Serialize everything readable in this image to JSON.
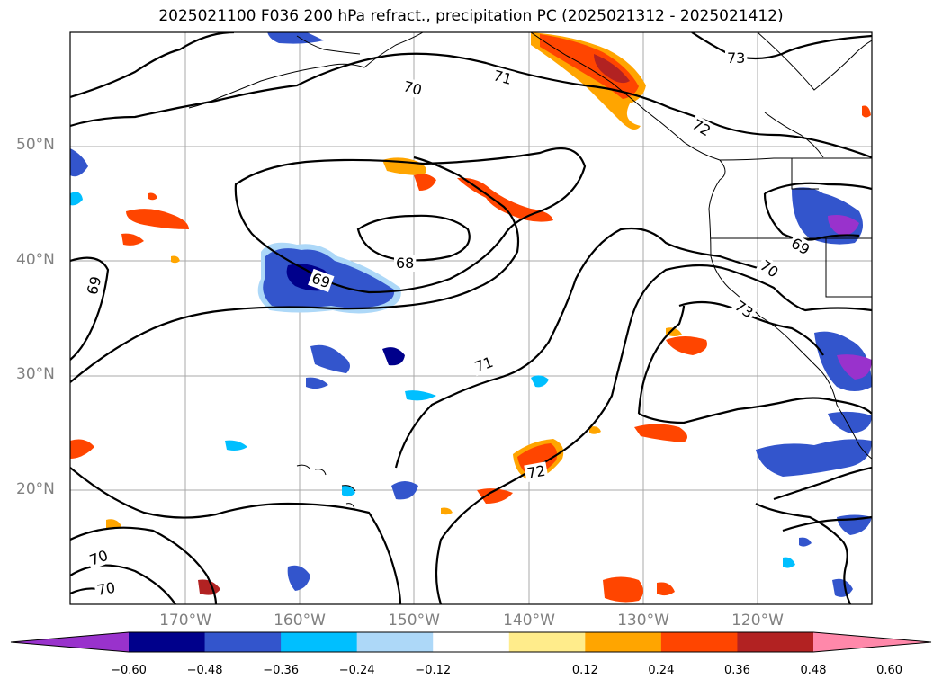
{
  "title": "2025021100 F036 200 hPa refract., precipitation PC (2025021312 - 2025021412)",
  "lat_labels": [
    "50°N",
    "40°N",
    "30°N",
    "20°N"
  ],
  "lon_labels": [
    "170°W",
    "160°W",
    "150°W",
    "140°W",
    "130°W",
    "120°W"
  ],
  "contour_labels": [
    "73",
    "71",
    "70",
    "72",
    "68",
    "69",
    "69",
    "70",
    "73",
    "71",
    "72",
    "69",
    "70",
    "70"
  ],
  "colorbar": {
    "ticks": [
      "−0.60",
      "−0.48",
      "−0.36",
      "−0.24",
      "−0.12",
      "0.12",
      "0.24",
      "0.36",
      "0.48",
      "0.60"
    ],
    "colors": [
      "#9932cc",
      "#00008b",
      "#3355cc",
      "#00bfff",
      "#add8f8",
      "#ffffff",
      "#ffec8b",
      "#ffa500",
      "#ff4500",
      "#b22222",
      "#ff88aa"
    ]
  }
}
